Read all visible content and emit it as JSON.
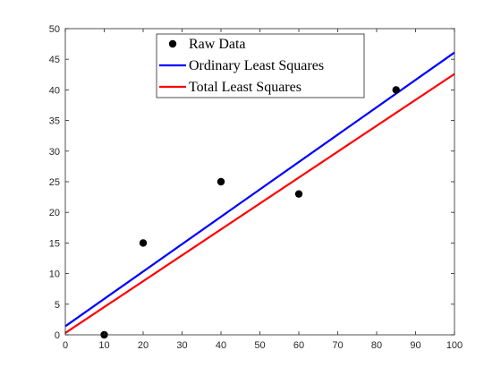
{
  "chart_data": {
    "type": "scatter",
    "xlim": [
      0,
      100
    ],
    "ylim": [
      0,
      50
    ],
    "x_ticks": [
      0,
      10,
      20,
      30,
      40,
      50,
      60,
      70,
      80,
      90,
      100
    ],
    "y_ticks": [
      0,
      5,
      10,
      15,
      20,
      25,
      30,
      35,
      40,
      45,
      50
    ],
    "grid": false,
    "legend_placement": "top-center",
    "series": [
      {
        "name": "Raw Data",
        "kind": "scatter",
        "color": "#000000",
        "x": [
          10,
          20,
          40,
          60,
          85
        ],
        "y": [
          0,
          15,
          25,
          23,
          40
        ]
      },
      {
        "name": "Ordinary Least Squares",
        "kind": "line",
        "color": "#0000ff",
        "x": [
          0,
          100
        ],
        "y": [
          1.4,
          46.1
        ]
      },
      {
        "name": "Total Least Squares",
        "kind": "line",
        "color": "#ff0000",
        "x": [
          0,
          100
        ],
        "y": [
          0.3,
          42.6
        ]
      }
    ]
  }
}
